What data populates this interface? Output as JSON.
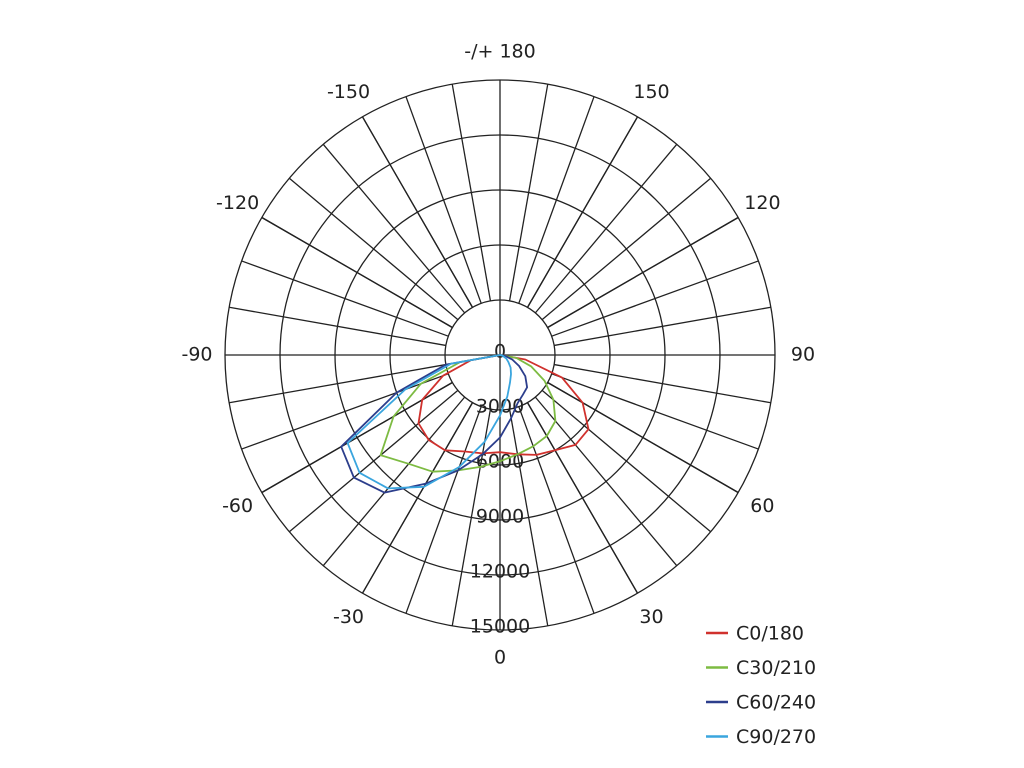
{
  "chart_data": {
    "type": "polar",
    "x": [
      -90,
      -80,
      -70,
      -60,
      -50,
      -40,
      -30,
      -20,
      -10,
      0,
      10,
      20,
      30,
      40,
      50,
      60,
      70,
      80,
      90
    ],
    "series": [
      {
        "name": "C0/180",
        "color": "#d0312d",
        "values": [
          0,
          1600,
          3300,
          4900,
          5800,
          6050,
          6000,
          5600,
          5450,
          5300,
          5500,
          5800,
          6000,
          6400,
          6300,
          5200,
          3600,
          1400,
          0
        ]
      },
      {
        "name": "C30/210",
        "color": "#7dbb42",
        "values": [
          0,
          2200,
          4600,
          6700,
          8500,
          7750,
          7350,
          6700,
          6200,
          5800,
          5500,
          5300,
          5100,
          4700,
          3800,
          2800,
          1800,
          900,
          0
        ]
      },
      {
        "name": "C60/240",
        "color": "#2c3e8c",
        "values": [
          0,
          3000,
          6000,
          10000,
          10400,
          9800,
          8100,
          6700,
          5500,
          4500,
          3500,
          2800,
          2500,
          2300,
          1800,
          1200,
          700,
          300,
          0
        ]
      },
      {
        "name": "C90/270",
        "color": "#3aa5de",
        "values": [
          0,
          2700,
          5500,
          9600,
          10000,
          9500,
          8300,
          6500,
          4800,
          3300,
          2300,
          1600,
          1200,
          900,
          600,
          400,
          200,
          100,
          0
        ]
      }
    ],
    "xticks": [
      {
        "value": 180,
        "label": "-/+ 180"
      },
      150,
      120,
      90,
      60,
      30,
      0,
      -30,
      -60,
      -90,
      -120,
      -150
    ],
    "ylim": [
      0,
      15000
    ],
    "yticks": [
      0,
      3000,
      6000,
      9000,
      12000,
      15000
    ],
    "legend": "bottom-right"
  }
}
